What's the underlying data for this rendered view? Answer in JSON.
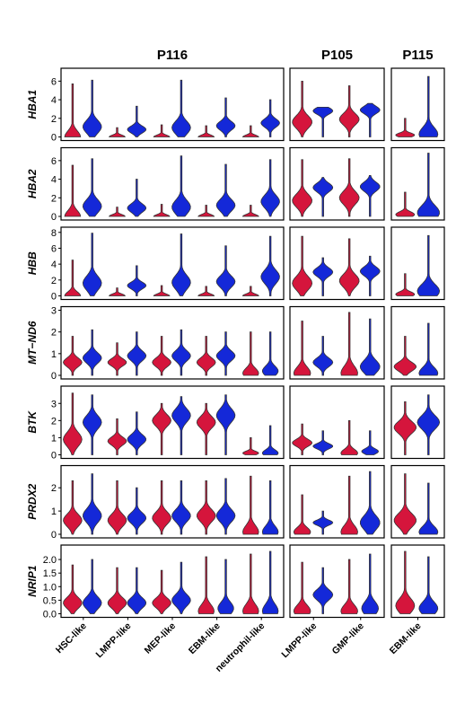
{
  "chart_data": {
    "type": "violin",
    "columns": [
      {
        "title": "P116",
        "categories": [
          "HSC-like",
          "LMPP-like",
          "MEP-like",
          "EBM-like",
          "neutrophil-like"
        ]
      },
      {
        "title": "P105",
        "categories": [
          "LMPP-like",
          "GMP-like"
        ]
      },
      {
        "title": "P115",
        "categories": [
          "EBM-like"
        ]
      }
    ],
    "groups": [
      {
        "color": "#d5153c"
      },
      {
        "color": "#1428d8"
      }
    ],
    "genes": [
      {
        "name": "HBA1",
        "ylim": [
          0,
          7
        ],
        "ticks": [
          "0",
          "2",
          "4",
          "6"
        ],
        "tick_values": [
          0,
          2,
          4,
          6
        ],
        "cols": [
          [
            [
              0.0,
              1.1
            ],
            [
              0.0,
              0.8
            ],
            [
              0.0,
              1.0
            ],
            [
              0.0,
              1.2
            ],
            [
              0.0,
              1.5
            ]
          ],
          [
            [
              1.6,
              2.8
            ],
            [
              1.9,
              2.9
            ]
          ],
          [
            [
              0.2,
              0.3
            ]
          ]
        ],
        "max": [
          [
            [
              5.7,
              6.1
            ],
            [
              1.0,
              3.3
            ],
            [
              1.3,
              6.1
            ],
            [
              1.2,
              4.2
            ],
            [
              1.2,
              4.0
            ]
          ],
          [
            [
              6.0,
              3.2
            ],
            [
              5.5,
              3.6
            ]
          ],
          [
            [
              2.0,
              6.5
            ]
          ]
        ]
      },
      {
        "name": "HBA2",
        "ylim": [
          0,
          7
        ],
        "ticks": [
          "0",
          "2",
          "4",
          "6"
        ],
        "tick_values": [
          0,
          2,
          4,
          6
        ],
        "cols": [
          [
            [
              0.0,
              1.1
            ],
            [
              0.0,
              0.9
            ],
            [
              0.0,
              1.0
            ],
            [
              0.0,
              1.2
            ],
            [
              0.0,
              1.6
            ]
          ],
          [
            [
              1.7,
              3.1
            ],
            [
              2.0,
              3.2
            ]
          ],
          [
            [
              0.2,
              0.4
            ]
          ]
        ],
        "max": [
          [
            [
              5.5,
              6.2
            ],
            [
              1.0,
              4.0
            ],
            [
              1.3,
              6.5
            ],
            [
              1.2,
              5.6
            ],
            [
              1.2,
              6.1
            ]
          ],
          [
            [
              6.1,
              4.2
            ],
            [
              6.2,
              4.4
            ]
          ],
          [
            [
              2.6,
              6.8
            ]
          ]
        ]
      },
      {
        "name": "HBB",
        "ylim": [
          0,
          8.2
        ],
        "ticks": [
          "0",
          "2",
          "4",
          "6",
          "8"
        ],
        "tick_values": [
          0,
          2,
          4,
          6,
          8
        ],
        "cols": [
          [
            [
              0.0,
              1.6
            ],
            [
              0.0,
              1.3
            ],
            [
              0.0,
              1.7
            ],
            [
              0.0,
              1.8
            ],
            [
              0.0,
              2.4
            ]
          ],
          [
            [
              1.6,
              3.0
            ],
            [
              1.9,
              3.1
            ]
          ],
          [
            [
              0.2,
              0.6
            ]
          ]
        ],
        "max": [
          [
            [
              4.5,
              7.9
            ],
            [
              1.0,
              3.8
            ],
            [
              1.3,
              7.8
            ],
            [
              1.2,
              6.3
            ],
            [
              1.2,
              7.5
            ]
          ],
          [
            [
              7.5,
              4.8
            ],
            [
              7.2,
              5.0
            ]
          ],
          [
            [
              2.8,
              7.6
            ]
          ]
        ]
      },
      {
        "name": "MT−ND6",
        "ylim": [
          0,
          3
        ],
        "ticks": [
          "0",
          "1",
          "2",
          "3"
        ],
        "tick_values": [
          0,
          1,
          2,
          3
        ],
        "cols": [
          [
            [
              0.6,
              0.8
            ],
            [
              0.6,
              0.9
            ],
            [
              0.6,
              0.9
            ],
            [
              0.6,
              0.9
            ],
            [
              0.1,
              0.2
            ]
          ],
          [
            [
              0.1,
              0.6
            ],
            [
              0.1,
              0.4
            ]
          ],
          [
            [
              0.4,
              0.1
            ]
          ]
        ],
        "max": [
          [
            [
              1.8,
              2.1
            ],
            [
              1.5,
              2.0
            ],
            [
              1.8,
              2.1
            ],
            [
              1.8,
              2.0
            ],
            [
              2.0,
              2.0
            ]
          ],
          [
            [
              2.5,
              1.8
            ],
            [
              2.9,
              2.6
            ]
          ],
          [
            [
              1.8,
              2.4
            ]
          ]
        ]
      },
      {
        "name": "BTK",
        "ylim": [
          0,
          3.8
        ],
        "ticks": [
          "0",
          "1",
          "2",
          "3"
        ],
        "tick_values": [
          0,
          1,
          2,
          3
        ],
        "cols": [
          [
            [
              0.9,
              1.9
            ],
            [
              0.8,
              0.9
            ],
            [
              2.0,
              2.3
            ],
            [
              1.9,
              2.3
            ],
            [
              0.1,
              0.1
            ]
          ],
          [
            [
              0.7,
              0.5
            ],
            [
              0.1,
              0.2
            ]
          ],
          [
            [
              1.6,
              1.9
            ]
          ]
        ],
        "max": [
          [
            [
              3.6,
              3.5
            ],
            [
              2.1,
              2.5
            ],
            [
              3.0,
              3.4
            ],
            [
              3.0,
              3.5
            ],
            [
              1.0,
              1.7
            ]
          ],
          [
            [
              1.8,
              1.4
            ],
            [
              2.0,
              1.4
            ]
          ],
          [
            [
              3.1,
              3.5
            ]
          ]
        ]
      },
      {
        "name": "PRDX2",
        "ylim": [
          0,
          2.8
        ],
        "ticks": [
          "0",
          "1",
          "2"
        ],
        "tick_values": [
          0,
          1,
          2
        ],
        "cols": [
          [
            [
              0.6,
              0.8
            ],
            [
              0.6,
              0.7
            ],
            [
              0.7,
              0.8
            ],
            [
              0.8,
              0.8
            ],
            [
              0.1,
              0.1
            ]
          ],
          [
            [
              0.1,
              0.5
            ],
            [
              0.1,
              0.5
            ]
          ],
          [
            [
              0.6,
              0.1
            ]
          ]
        ],
        "max": [
          [
            [
              2.3,
              2.6
            ],
            [
              2.3,
              2.0
            ],
            [
              2.3,
              2.3
            ],
            [
              2.3,
              2.4
            ],
            [
              2.5,
              2.3
            ]
          ],
          [
            [
              1.7,
              1.0
            ],
            [
              2.5,
              2.7
            ]
          ],
          [
            [
              2.6,
              2.2
            ]
          ]
        ]
      },
      {
        "name": "NRIP1",
        "ylim": [
          0,
          2.4
        ],
        "ticks": [
          "0.0",
          "0.5",
          "1.0",
          "1.5",
          "2.0"
        ],
        "tick_values": [
          0,
          0.5,
          1.0,
          1.5,
          2.0
        ],
        "cols": [
          [
            [
              0.4,
              0.4
            ],
            [
              0.4,
              0.4
            ],
            [
              0.4,
              0.5
            ],
            [
              0.1,
              0.2
            ],
            [
              0.1,
              0.1
            ]
          ],
          [
            [
              0.1,
              0.7
            ],
            [
              0.1,
              0.2
            ]
          ],
          [
            [
              0.3,
              0.2
            ]
          ]
        ],
        "max": [
          [
            [
              1.8,
              2.0
            ],
            [
              1.7,
              1.7
            ],
            [
              1.6,
              1.9
            ],
            [
              2.1,
              2.0
            ],
            [
              2.2,
              2.3
            ]
          ],
          [
            [
              1.9,
              1.7
            ],
            [
              2.0,
              2.2
            ]
          ],
          [
            [
              2.3,
              2.1
            ]
          ]
        ]
      }
    ]
  }
}
